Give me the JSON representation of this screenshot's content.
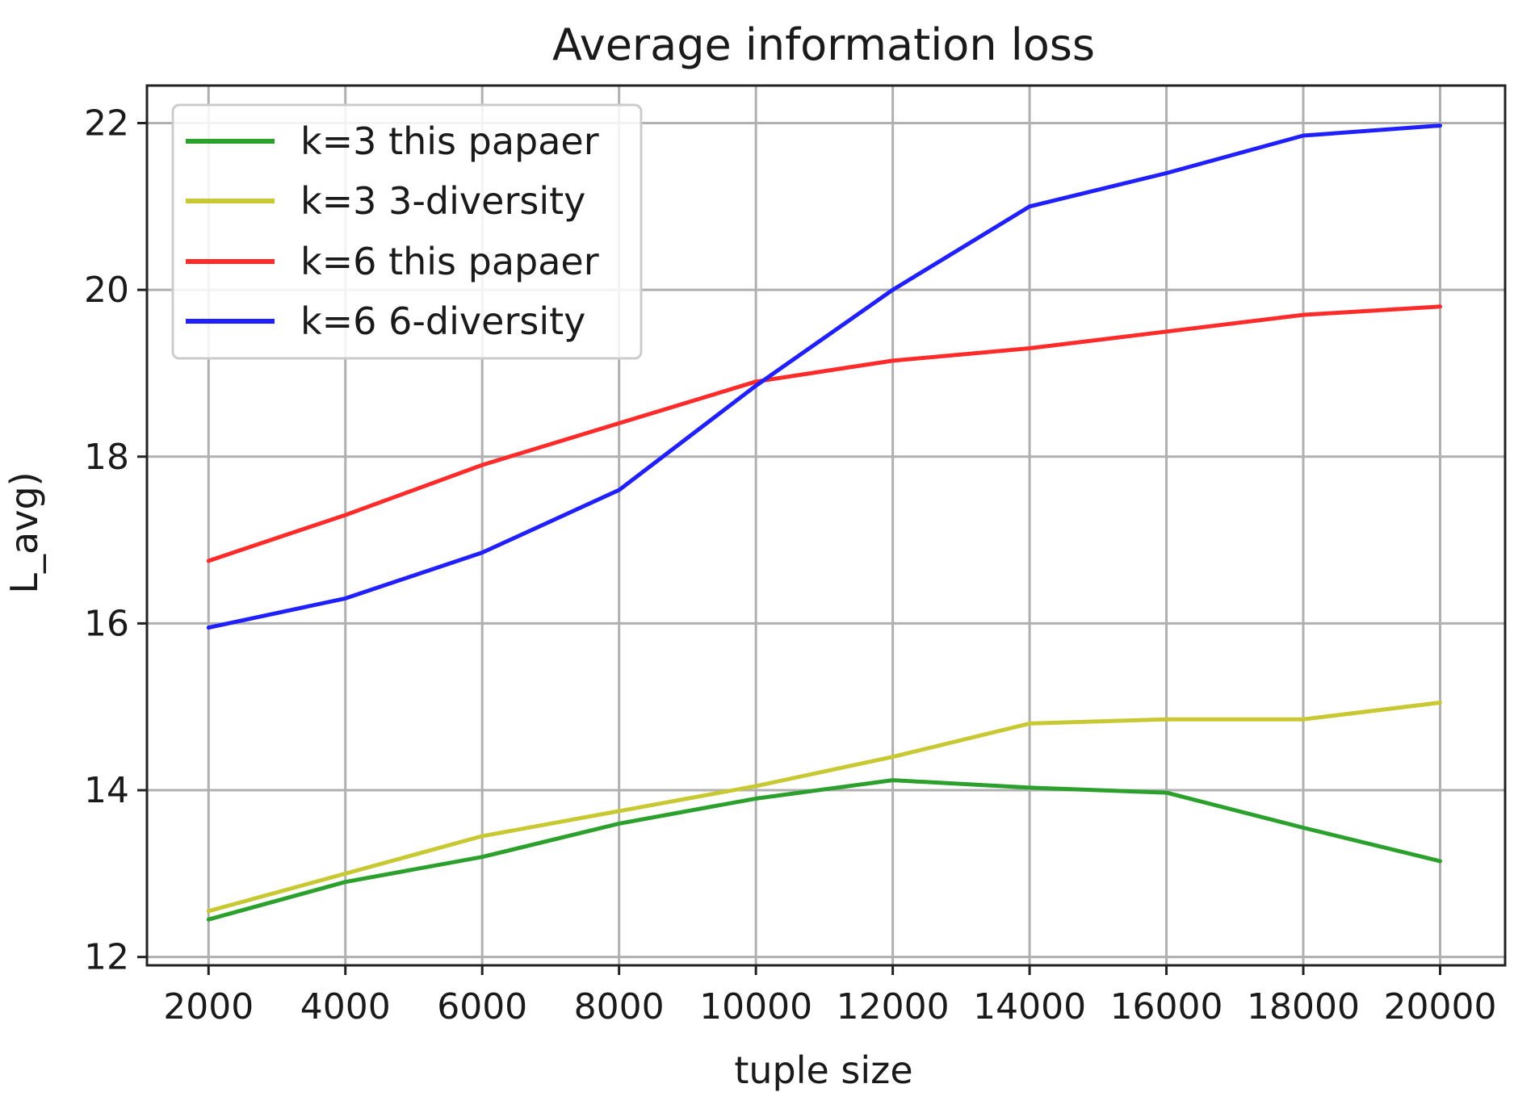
{
  "chart_data": {
    "type": "line",
    "title": "Average information loss",
    "xlabel": "tuple size",
    "ylabel": "L_avg)",
    "x": [
      2000,
      4000,
      6000,
      8000,
      10000,
      12000,
      14000,
      16000,
      18000,
      20000
    ],
    "x_tick_labels": [
      "2000",
      "4000",
      "6000",
      "8000",
      "10000",
      "12000",
      "14000",
      "16000",
      "18000",
      "20000"
    ],
    "y_ticks": [
      12,
      14,
      16,
      18,
      20,
      22
    ],
    "y_tick_labels": [
      "12",
      "14",
      "16",
      "18",
      "20",
      "22"
    ],
    "xlim": [
      1100,
      20950
    ],
    "ylim": [
      11.9,
      22.45
    ],
    "grid": true,
    "legend_position": "top-left",
    "series": [
      {
        "name": "k=3 this papaer",
        "color": "#2ca02c",
        "values": [
          12.45,
          12.9,
          13.2,
          13.6,
          13.9,
          14.12,
          14.03,
          13.97,
          13.55,
          13.15
        ]
      },
      {
        "name": "k=3 3-diversity",
        "color": "#c8c832",
        "values": [
          12.55,
          13.0,
          13.45,
          13.75,
          14.05,
          14.4,
          14.8,
          14.85,
          14.85,
          15.05
        ]
      },
      {
        "name": "k=6 this papaer",
        "color": "#ff2a2a",
        "values": [
          16.75,
          17.3,
          17.9,
          18.4,
          18.9,
          19.15,
          19.3,
          19.5,
          19.7,
          19.8
        ]
      },
      {
        "name": "k=6 6-diversity",
        "color": "#2020ff",
        "values": [
          15.95,
          16.3,
          16.85,
          17.6,
          18.85,
          20.0,
          21.0,
          21.4,
          21.85,
          21.97
        ]
      }
    ]
  }
}
